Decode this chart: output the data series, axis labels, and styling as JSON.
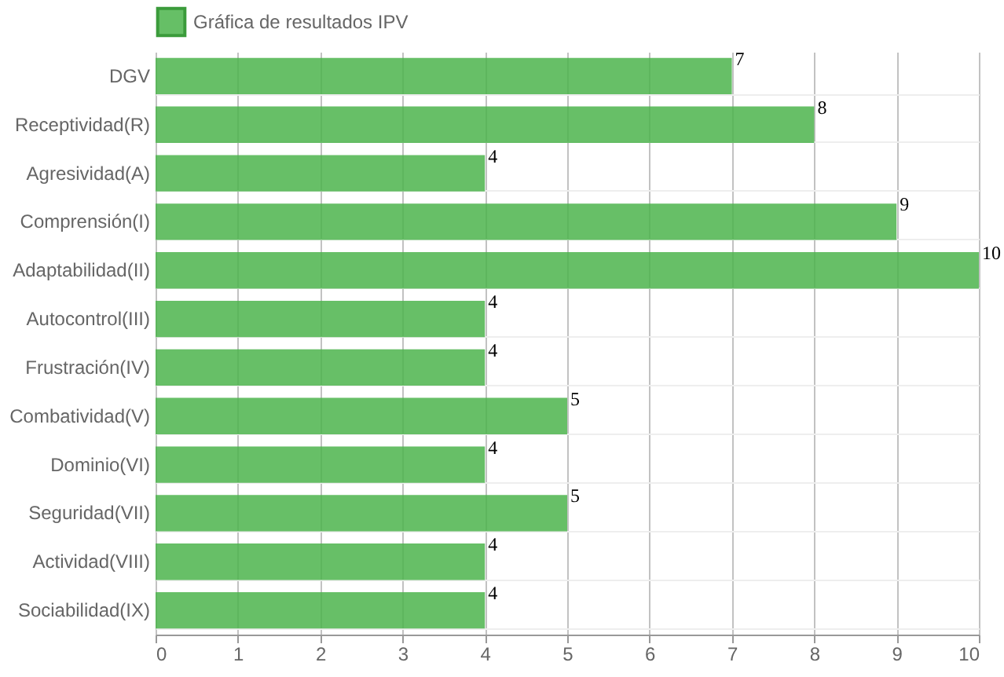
{
  "chart_data": {
    "type": "bar",
    "orientation": "horizontal",
    "categories": [
      "DGV",
      "Receptividad(R)",
      "Agresividad(A)",
      "Comprensión(I)",
      "Adaptabilidad(II)",
      "Autocontrol(III)",
      "Frustración(IV)",
      "Combatividad(V)",
      "Dominio(VI)",
      "Seguridad(VII)",
      "Actividad(VIII)",
      "Sociabilidad(IX)"
    ],
    "series": [
      {
        "name": "Gráfica de resultados IPV",
        "color": "#4cb44c",
        "values": [
          7,
          8,
          4,
          9,
          10,
          4,
          4,
          5,
          4,
          5,
          4,
          4
        ]
      }
    ],
    "xlim": [
      0,
      10
    ],
    "xticks": [
      0,
      1,
      2,
      3,
      4,
      5,
      6,
      7,
      8,
      9,
      10
    ],
    "grid": true,
    "legend": "top",
    "data_labels": true
  }
}
